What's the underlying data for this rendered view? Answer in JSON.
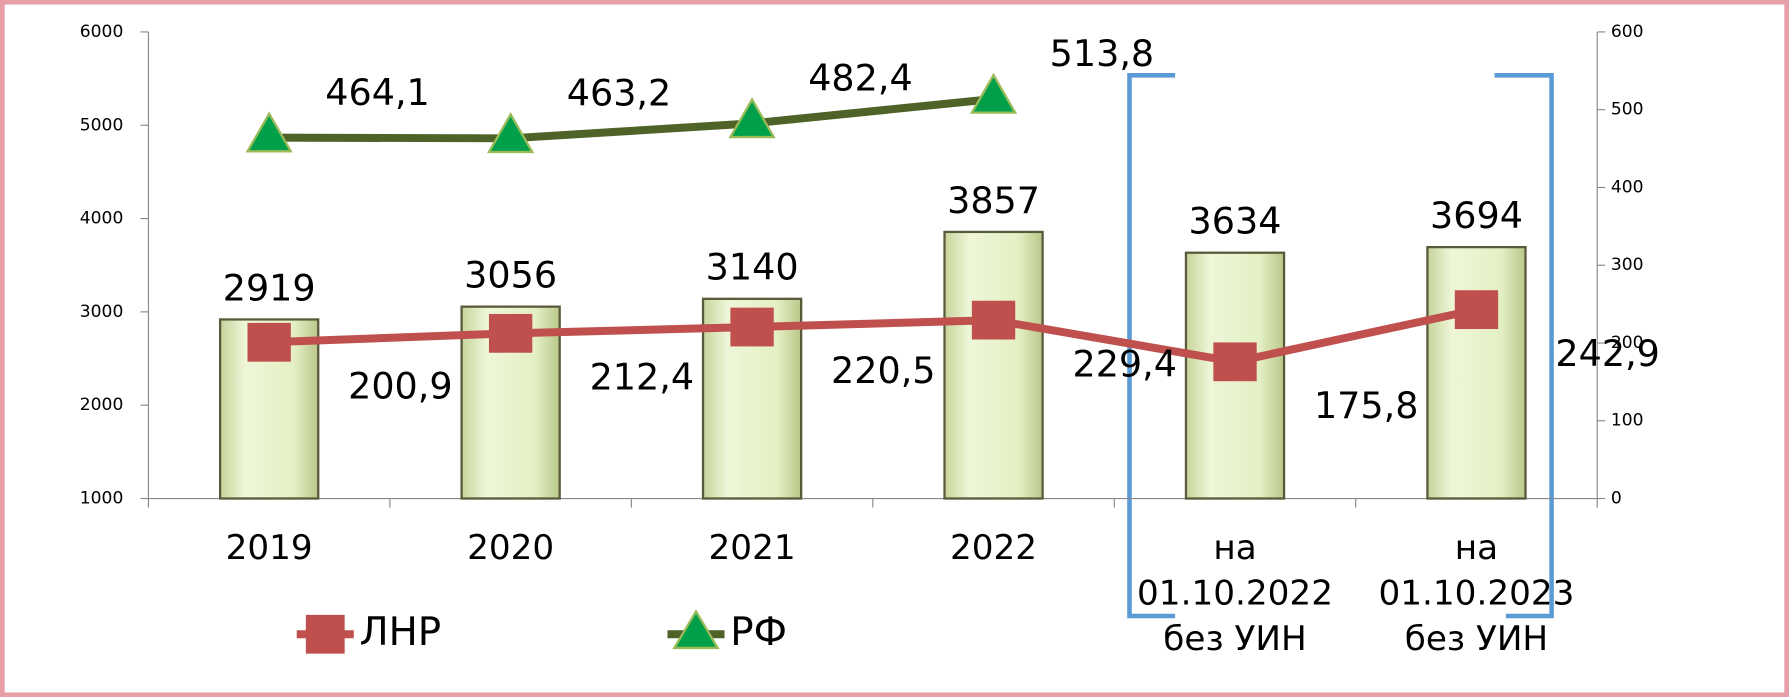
{
  "chart_data": {
    "type": "bar",
    "categories": [
      "2019",
      "2020",
      "2021",
      "2022",
      "на 01.10.2022 без УИН",
      "на 01.10.2023 без УИН"
    ],
    "values": [
      2919,
      3056,
      3140,
      3857,
      3634,
      3694
    ],
    "color": "#e4f0c4",
    "ylim": [
      1000,
      6000
    ],
    "yticks": [
      1000,
      2000,
      3000,
      4000,
      5000,
      6000
    ],
    "y2lim": [
      0,
      600
    ],
    "y2ticks": [
      0,
      100,
      200,
      300,
      400,
      500,
      600
    ],
    "series": [
      {
        "name": "ЛНР",
        "color": "#c0504d",
        "axis": "y2",
        "type": "line",
        "values": [
          200.9,
          212.4,
          220.5,
          229.4,
          175.8,
          242.9
        ],
        "value_labels": [
          "200,9",
          "212,4",
          "220,5",
          "229,4",
          "175,8",
          "242,9"
        ]
      },
      {
        "name": "РФ",
        "color": "#4f6228",
        "axis": "y2",
        "type": "line",
        "values": [
          464.1,
          463.2,
          482.4,
          513.8,
          null,
          null
        ],
        "value_labels": [
          "464,1",
          "463,2",
          "482,4",
          "513,8",
          null,
          null
        ]
      }
    ],
    "legend": "bottom-left"
  }
}
